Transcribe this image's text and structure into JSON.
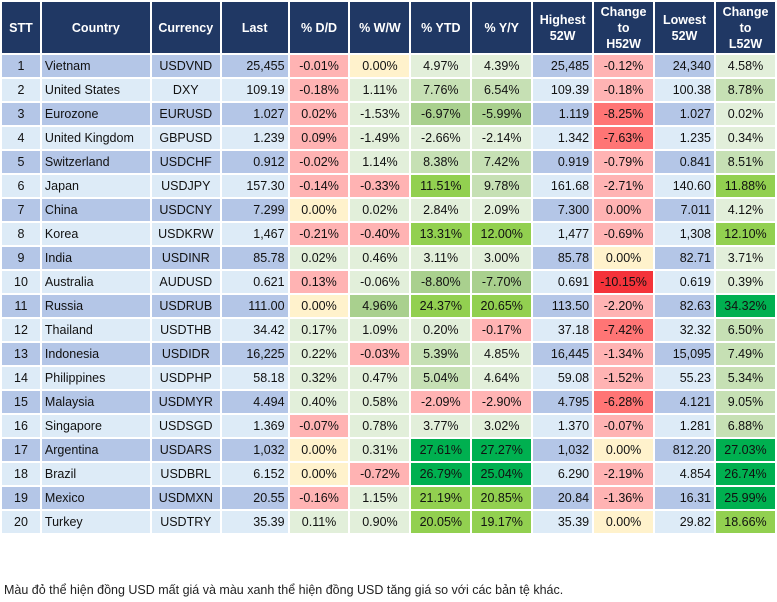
{
  "headers": [
    "STT",
    "Country",
    "Currency",
    "Last",
    "% D/D",
    "% W/W",
    "% YTD",
    "% Y/Y",
    "Highest\n52W",
    "Change\nto\nH52W",
    "Lowest\n52W",
    "Change\nto\nL52W"
  ],
  "colors": {
    "r": "#ffb3b3",
    "R": "#ff7575",
    "RR": "#f4333a",
    "y": "#fff2cc",
    "g": "#e2efda",
    "G": "#c6e0b4",
    "G2": "#a9d08e",
    "G3": "#92d050",
    "G4": "#00b050",
    "row_odd": "#b4c6e7",
    "row_even": "#ddebf7",
    "header": "#203864"
  },
  "rows": [
    {
      "stt": "1",
      "country": "Vietnam",
      "currency": "USDVND",
      "last": "25,455",
      "dd": "-0.01%",
      "ww": "0.00%",
      "ytd": "4.97%",
      "yy": "4.39%",
      "high": "25,485",
      "h52": "-0.12%",
      "low": "24,340",
      "l52": "4.58%",
      "heat": [
        "r",
        "y",
        "g",
        "g",
        "r",
        "g"
      ]
    },
    {
      "stt": "2",
      "country": "United States",
      "currency": "DXY",
      "last": "109.19",
      "dd": "-0.18%",
      "ww": "1.11%",
      "ytd": "7.76%",
      "yy": "6.54%",
      "high": "109.39",
      "h52": "-0.18%",
      "low": "100.38",
      "l52": "8.78%",
      "heat": [
        "r",
        "g",
        "G",
        "G",
        "r",
        "G"
      ]
    },
    {
      "stt": "3",
      "country": "Eurozone",
      "currency": "EURUSD",
      "last": "1.027",
      "dd": "0.02%",
      "ww": "-1.53%",
      "ytd": "-6.97%",
      "yy": "-5.99%",
      "high": "1.119",
      "h52": "-8.25%",
      "low": "1.027",
      "l52": "0.02%",
      "heat": [
        "r",
        "g",
        "G2",
        "G2",
        "R",
        "g"
      ]
    },
    {
      "stt": "4",
      "country": "United Kingdom",
      "currency": "GBPUSD",
      "last": "1.239",
      "dd": "0.09%",
      "ww": "-1.49%",
      "ytd": "-2.66%",
      "yy": "-2.14%",
      "high": "1.342",
      "h52": "-7.63%",
      "low": "1.235",
      "l52": "0.34%",
      "heat": [
        "r",
        "g",
        "g",
        "g",
        "R",
        "g"
      ]
    },
    {
      "stt": "5",
      "country": "Switzerland",
      "currency": "USDCHF",
      "last": "0.912",
      "dd": "-0.02%",
      "ww": "1.14%",
      "ytd": "8.38%",
      "yy": "7.42%",
      "high": "0.919",
      "h52": "-0.79%",
      "low": "0.841",
      "l52": "8.51%",
      "heat": [
        "r",
        "g",
        "G",
        "G",
        "r",
        "G"
      ]
    },
    {
      "stt": "6",
      "country": "Japan",
      "currency": "USDJPY",
      "last": "157.30",
      "dd": "-0.14%",
      "ww": "-0.33%",
      "ytd": "11.51%",
      "yy": "9.78%",
      "high": "161.68",
      "h52": "-2.71%",
      "low": "140.60",
      "l52": "11.88%",
      "heat": [
        "r",
        "r",
        "G3",
        "G",
        "r",
        "G3"
      ]
    },
    {
      "stt": "7",
      "country": "China",
      "currency": "USDCNY",
      "last": "7.299",
      "dd": "0.00%",
      "ww": "0.02%",
      "ytd": "2.84%",
      "yy": "2.09%",
      "high": "7.300",
      "h52": "0.00%",
      "low": "7.011",
      "l52": "4.12%",
      "heat": [
        "y",
        "g",
        "g",
        "g",
        "r",
        "g"
      ]
    },
    {
      "stt": "8",
      "country": "Korea",
      "currency": "USDKRW",
      "last": "1,467",
      "dd": "-0.21%",
      "ww": "-0.40%",
      "ytd": "13.31%",
      "yy": "12.00%",
      "high": "1,477",
      "h52": "-0.69%",
      "low": "1,308",
      "l52": "12.10%",
      "heat": [
        "r",
        "r",
        "G3",
        "G3",
        "r",
        "G3"
      ]
    },
    {
      "stt": "9",
      "country": "India",
      "currency": "USDINR",
      "last": "85.78",
      "dd": "0.02%",
      "ww": "0.46%",
      "ytd": "3.11%",
      "yy": "3.00%",
      "high": "85.78",
      "h52": "0.00%",
      "low": "82.71",
      "l52": "3.71%",
      "heat": [
        "g",
        "g",
        "g",
        "g",
        "y",
        "g"
      ]
    },
    {
      "stt": "10",
      "country": "Australia",
      "currency": "AUDUSD",
      "last": "0.621",
      "dd": "0.13%",
      "ww": "-0.06%",
      "ytd": "-8.80%",
      "yy": "-7.70%",
      "high": "0.691",
      "h52": "-10.15%",
      "low": "0.619",
      "l52": "0.39%",
      "heat": [
        "r",
        "g",
        "G2",
        "G2",
        "RR",
        "g"
      ]
    },
    {
      "stt": "11",
      "country": "Russia",
      "currency": "USDRUB",
      "last": "111.00",
      "dd": "0.00%",
      "ww": "4.96%",
      "ytd": "24.37%",
      "yy": "20.65%",
      "high": "113.50",
      "h52": "-2.20%",
      "low": "82.63",
      "l52": "34.32%",
      "heat": [
        "y",
        "G2",
        "G3",
        "G3",
        "r",
        "G4"
      ]
    },
    {
      "stt": "12",
      "country": "Thailand",
      "currency": "USDTHB",
      "last": "34.42",
      "dd": "0.17%",
      "ww": "1.09%",
      "ytd": "0.20%",
      "yy": "-0.17%",
      "high": "37.18",
      "h52": "-7.42%",
      "low": "32.32",
      "l52": "6.50%",
      "heat": [
        "g",
        "g",
        "g",
        "r",
        "R",
        "G"
      ]
    },
    {
      "stt": "13",
      "country": "Indonesia",
      "currency": "USDIDR",
      "last": "16,225",
      "dd": "0.22%",
      "ww": "-0.03%",
      "ytd": "5.39%",
      "yy": "4.85%",
      "high": "16,445",
      "h52": "-1.34%",
      "low": "15,095",
      "l52": "7.49%",
      "heat": [
        "g",
        "r",
        "G",
        "g",
        "r",
        "G"
      ]
    },
    {
      "stt": "14",
      "country": "Philippines",
      "currency": "USDPHP",
      "last": "58.18",
      "dd": "0.32%",
      "ww": "0.47%",
      "ytd": "5.04%",
      "yy": "4.64%",
      "high": "59.08",
      "h52": "-1.52%",
      "low": "55.23",
      "l52": "5.34%",
      "heat": [
        "g",
        "g",
        "G",
        "g",
        "r",
        "G"
      ]
    },
    {
      "stt": "15",
      "country": "Malaysia",
      "currency": "USDMYR",
      "last": "4.494",
      "dd": "0.40%",
      "ww": "0.58%",
      "ytd": "-2.09%",
      "yy": "-2.90%",
      "high": "4.795",
      "h52": "-6.28%",
      "low": "4.121",
      "l52": "9.05%",
      "heat": [
        "g",
        "g",
        "r",
        "r",
        "R",
        "G"
      ]
    },
    {
      "stt": "16",
      "country": "Singapore",
      "currency": "USDSGD",
      "last": "1.369",
      "dd": "-0.07%",
      "ww": "0.78%",
      "ytd": "3.77%",
      "yy": "3.02%",
      "high": "1.370",
      "h52": "-0.07%",
      "low": "1.281",
      "l52": "6.88%",
      "heat": [
        "r",
        "g",
        "g",
        "g",
        "r",
        "G"
      ]
    },
    {
      "stt": "17",
      "country": "Argentina",
      "currency": "USDARS",
      "last": "1,032",
      "dd": "0.00%",
      "ww": "0.31%",
      "ytd": "27.61%",
      "yy": "27.27%",
      "high": "1,032",
      "h52": "0.00%",
      "low": "812.20",
      "l52": "27.03%",
      "heat": [
        "y",
        "g",
        "G4",
        "G4",
        "y",
        "G4"
      ]
    },
    {
      "stt": "18",
      "country": "Brazil",
      "currency": "USDBRL",
      "last": "6.152",
      "dd": "0.00%",
      "ww": "-0.72%",
      "ytd": "26.79%",
      "yy": "25.04%",
      "high": "6.290",
      "h52": "-2.19%",
      "low": "4.854",
      "l52": "26.74%",
      "heat": [
        "y",
        "r",
        "G4",
        "G4",
        "r",
        "G4"
      ]
    },
    {
      "stt": "19",
      "country": "Mexico",
      "currency": "USDMXN",
      "last": "20.55",
      "dd": "-0.16%",
      "ww": "1.15%",
      "ytd": "21.19%",
      "yy": "20.85%",
      "high": "20.84",
      "h52": "-1.36%",
      "low": "16.31",
      "l52": "25.99%",
      "heat": [
        "r",
        "g",
        "G3",
        "G3",
        "r",
        "G4"
      ]
    },
    {
      "stt": "20",
      "country": "Turkey",
      "currency": "USDTRY",
      "last": "35.39",
      "dd": "0.11%",
      "ww": "0.90%",
      "ytd": "20.05%",
      "yy": "19.17%",
      "high": "35.39",
      "h52": "0.00%",
      "low": "29.82",
      "l52": "18.66%",
      "heat": [
        "g",
        "g",
        "G3",
        "G3",
        "y",
        "G3"
      ]
    }
  ],
  "note": "Màu đỏ thể hiện đồng USD mất giá và màu xanh thể hiện đồng USD tăng giá so với các bản tệ khác."
}
